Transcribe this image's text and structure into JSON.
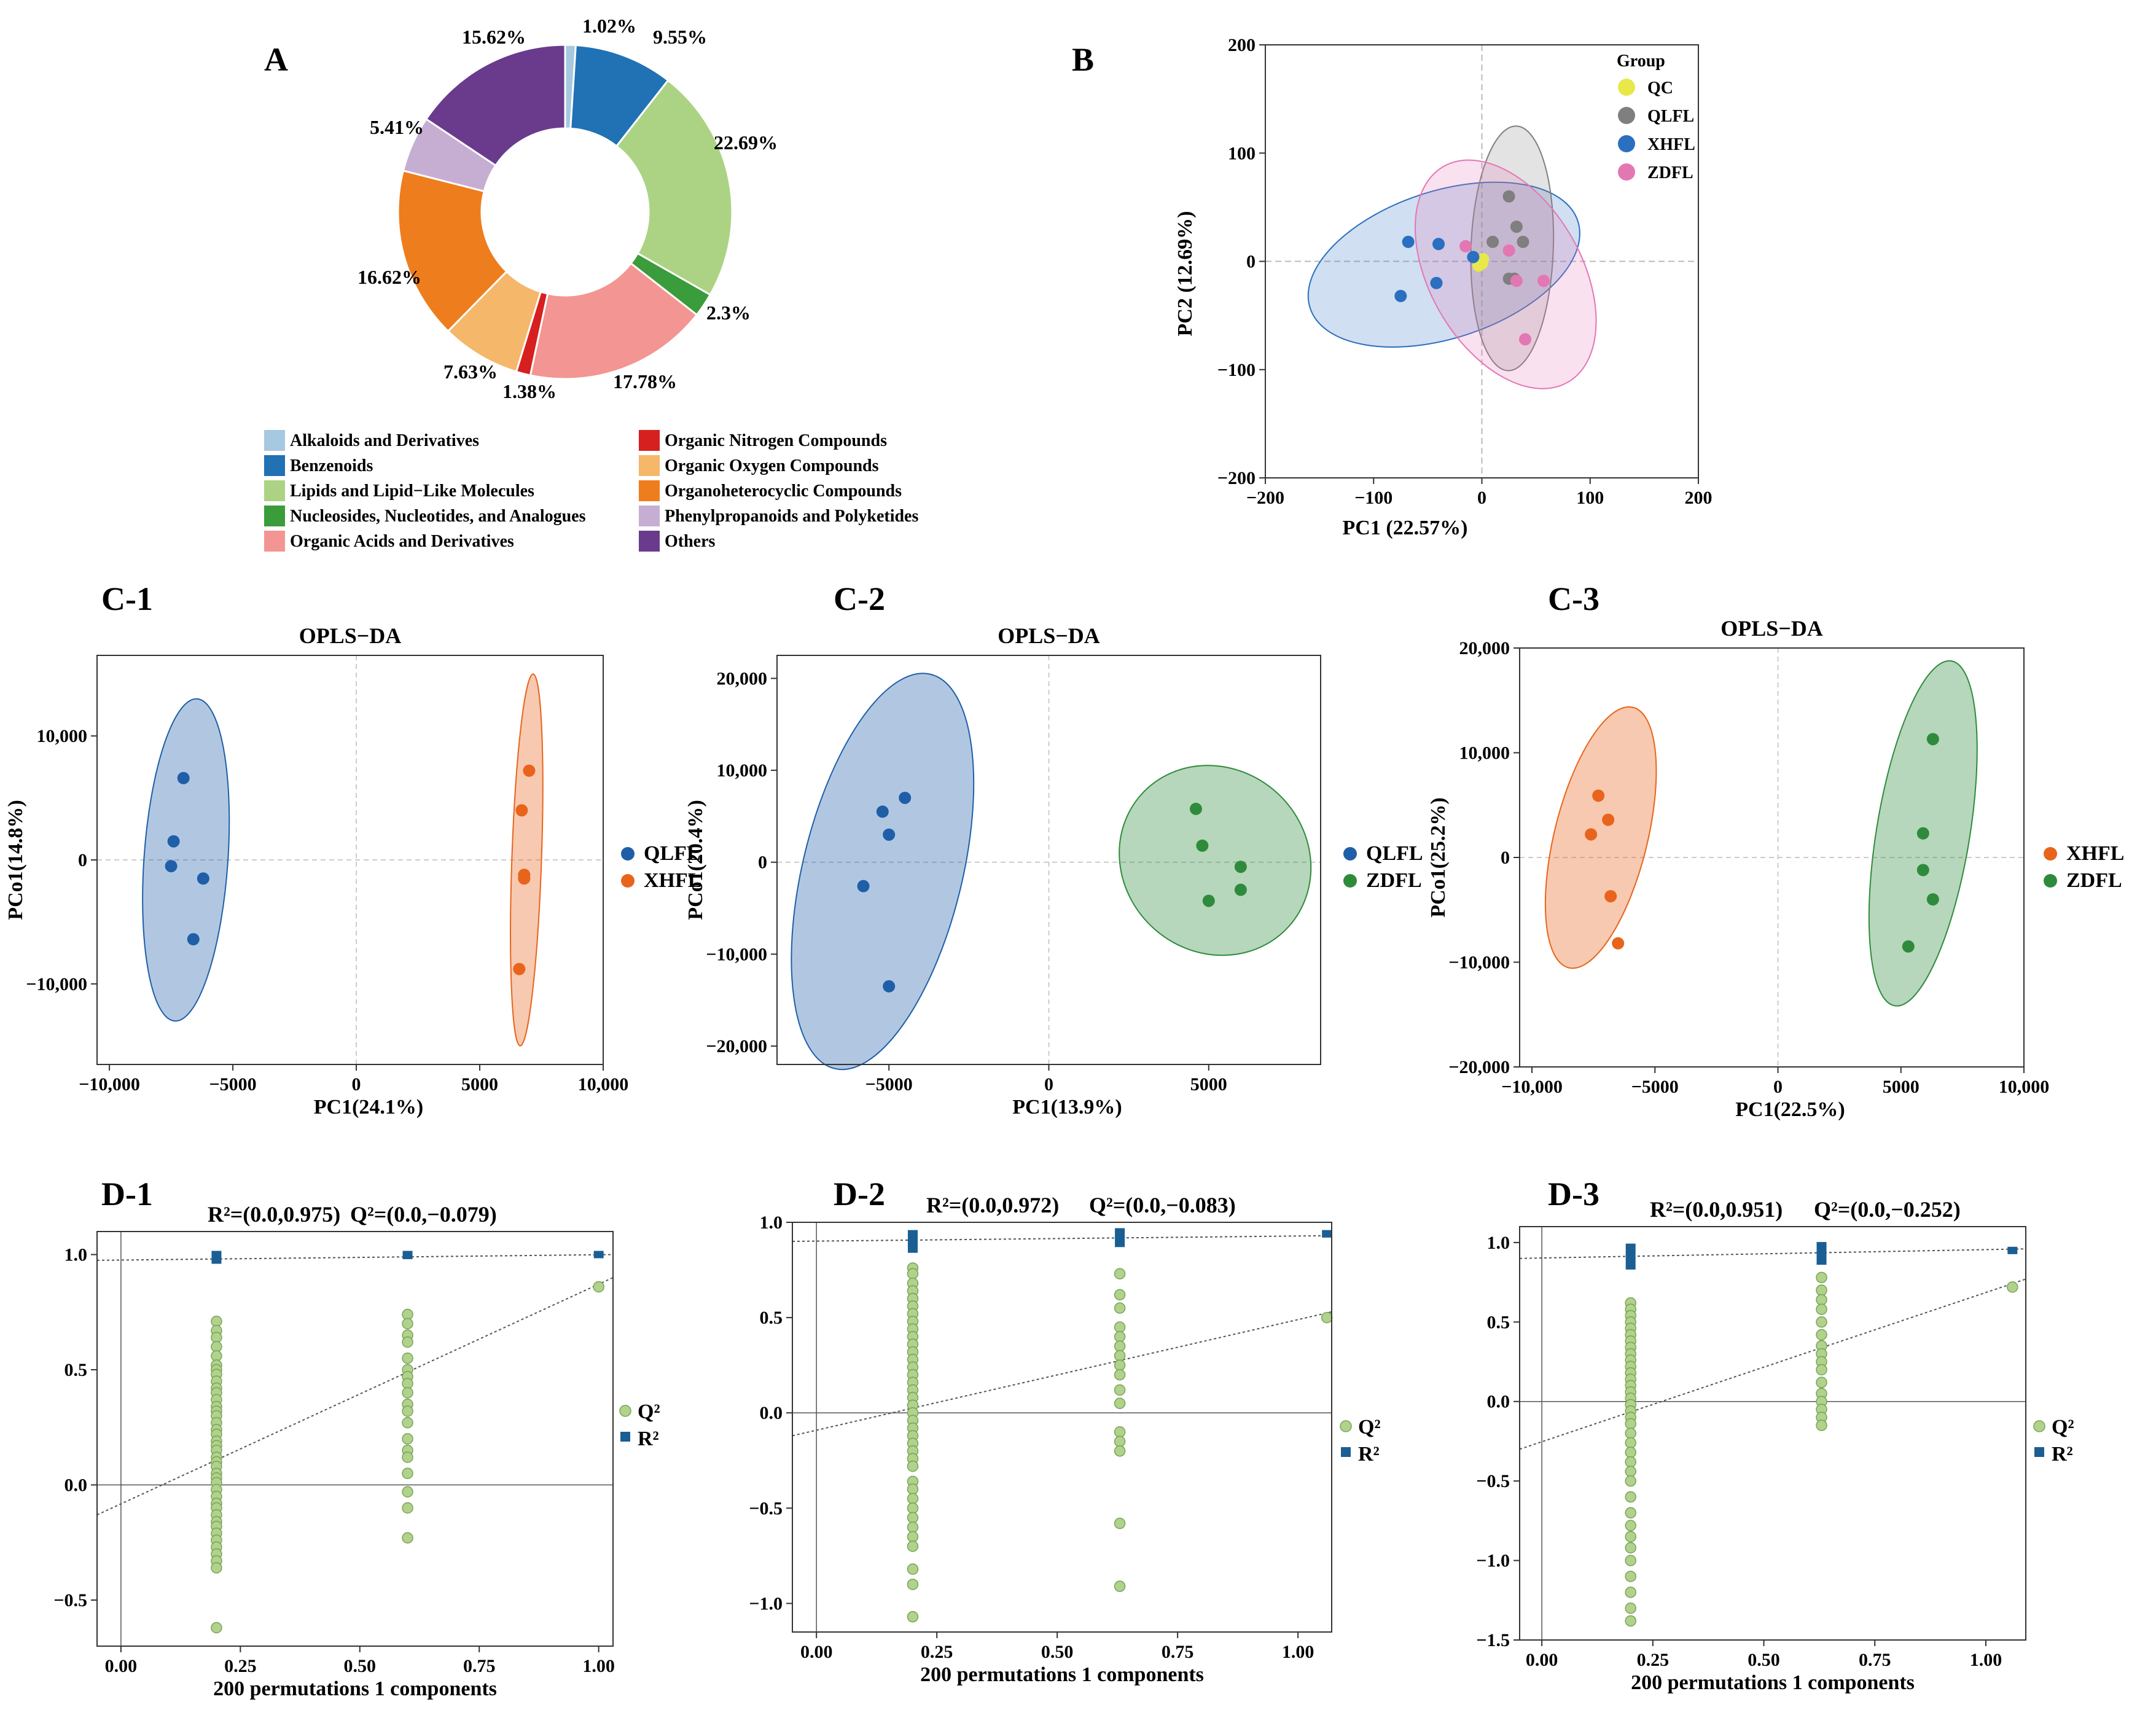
{
  "chart_data": [
    {
      "id": "A",
      "type": "pie",
      "donut": true,
      "title": "A",
      "slices": [
        {
          "label": "Alkaloids and Derivatives",
          "pct": 1.02,
          "color": "#a6c8e0"
        },
        {
          "label": "Benzenoids",
          "pct": 9.55,
          "color": "#2171b5"
        },
        {
          "label": "Lipids and Lipid−Like Molecules",
          "pct": 22.69,
          "color": "#acd384"
        },
        {
          "label": "Nucleosides, Nucleotides, and Analogues",
          "pct": 2.3,
          "color": "#3a9c3a"
        },
        {
          "label": "Organic Acids and Derivatives",
          "pct": 17.78,
          "color": "#f39592"
        },
        {
          "label": "Organic Nitrogen Compounds",
          "pct": 1.38,
          "color": "#d62020"
        },
        {
          "label": "Organic Oxygen Compounds",
          "pct": 7.63,
          "color": "#f5b76a"
        },
        {
          "label": "Organoheterocyclic Compounds",
          "pct": 16.62,
          "color": "#ee7d1e"
        },
        {
          "label": "Phenylpropanoids and Polyketides",
          "pct": 5.41,
          "color": "#c6aed3"
        },
        {
          "label": "Others",
          "pct": 15.62,
          "color": "#6a3b8c"
        }
      ],
      "slice_labels": [
        "1.02%",
        "9.55%",
        "22.69%",
        "2.3%",
        "17.78%",
        "1.38%",
        "7.63%",
        "16.62%",
        "5.41%",
        "15.62%"
      ]
    },
    {
      "id": "B",
      "type": "scatter",
      "title": "B",
      "xlabel": "PC1  (22.57%)",
      "ylabel": "PC2  (12.69%)",
      "xlim": [
        -200,
        200
      ],
      "ylim": [
        -200,
        200
      ],
      "xticks": [
        -200,
        -100,
        0,
        100,
        200
      ],
      "yticks": [
        -200,
        -100,
        0,
        100,
        200
      ],
      "xtick_labels": [
        "−200",
        "−100",
        "0",
        "100",
        "200"
      ],
      "ytick_labels": [
        "−200",
        "−100",
        "0",
        "100",
        "200"
      ],
      "legend_title": "Group",
      "series": [
        {
          "name": "QC",
          "color": "#e8e84a",
          "points": [
            [
              -2,
              0
            ],
            [
              0,
              -2
            ],
            [
              -3,
              -4
            ],
            [
              1,
              2
            ]
          ]
        },
        {
          "name": "QLFL",
          "color": "#7f7f7f",
          "points": [
            [
              25,
              60
            ],
            [
              32,
              32
            ],
            [
              10,
              18
            ],
            [
              38,
              18
            ],
            [
              25,
              -16
            ],
            [
              30,
              -16
            ]
          ]
        },
        {
          "name": "XHFL",
          "color": "#2a6fc0",
          "points": [
            [
              -68,
              18
            ],
            [
              -40,
              16
            ],
            [
              -75,
              -32
            ],
            [
              -42,
              -20
            ],
            [
              -8,
              4
            ]
          ]
        },
        {
          "name": "ZDFL",
          "color": "#e377b4",
          "points": [
            [
              -15,
              14
            ],
            [
              25,
              10
            ],
            [
              32,
              -18
            ],
            [
              57,
              -18
            ],
            [
              40,
              -72
            ]
          ]
        }
      ],
      "ellipses": [
        {
          "group": "XHFL",
          "cx": -35,
          "cy": -3,
          "rx": 130,
          "ry": 68,
          "angle": 18
        },
        {
          "group": "QLFL",
          "cx": 28,
          "cy": 12,
          "rx": 113,
          "ry": 38,
          "angle": 88
        },
        {
          "group": "ZDFL",
          "cx": 22,
          "cy": -12,
          "rx": 115,
          "ry": 70,
          "angle": -60
        }
      ]
    },
    {
      "id": "C-1",
      "type": "scatter",
      "title": "OPLS−DA",
      "panel_label": "C-1",
      "xlabel": "PC1(24.1%)",
      "ylabel": "PCo1(14.8%)",
      "xlim": [
        -10500,
        10000
      ],
      "ylim": [
        -16500,
        16500
      ],
      "xticks": [
        -10000,
        -5000,
        0,
        5000,
        10000
      ],
      "xtick_labels": [
        "−10,000",
        "−5000",
        "0",
        "5000",
        "10,000"
      ],
      "yticks": [
        -10000,
        0,
        10000
      ],
      "ytick_labels": [
        "−10,000",
        "0",
        "10,000"
      ],
      "series": [
        {
          "name": "QLFL",
          "color": "#1f5fa8",
          "points": [
            [
              -7000,
              6600
            ],
            [
              -7400,
              1500
            ],
            [
              -7500,
              -500
            ],
            [
              -6200,
              -1500
            ],
            [
              -6600,
              -6400
            ]
          ]
        },
        {
          "name": "XHFL",
          "color": "#e8641c",
          "points": [
            [
              7000,
              7200
            ],
            [
              6700,
              4000
            ],
            [
              6800,
              -1200
            ],
            [
              6800,
              -1500
            ],
            [
              6600,
              -8800
            ]
          ]
        }
      ],
      "ellipses": [
        {
          "group": "QLFL",
          "cx": -6900,
          "cy": 0,
          "rx": 13000,
          "ry": 1700,
          "angle": 88
        },
        {
          "group": "XHFL",
          "cx": 6900,
          "cy": 0,
          "rx": 15000,
          "ry": 600,
          "angle": 89
        }
      ]
    },
    {
      "id": "C-2",
      "type": "scatter",
      "title": "OPLS−DA",
      "panel_label": "C-2",
      "xlabel": "PC1(13.9%)",
      "ylabel": "PCo1(20.4%)",
      "xlim": [
        -8500,
        8500
      ],
      "ylim": [
        -22000,
        22500
      ],
      "xticks": [
        -5000,
        0,
        5000
      ],
      "xtick_labels": [
        "−5000",
        "0",
        "5000"
      ],
      "yticks": [
        -20000,
        -10000,
        0,
        10000,
        20000
      ],
      "ytick_labels": [
        "−20,000",
        "−10,000",
        "0",
        "10,000",
        "20,000"
      ],
      "series": [
        {
          "name": "QLFL",
          "color": "#1f5fa8",
          "points": [
            [
              -4500,
              7000
            ],
            [
              -5200,
              5500
            ],
            [
              -5000,
              3000
            ],
            [
              -5800,
              -2600
            ],
            [
              -5000,
              -13500
            ]
          ]
        },
        {
          "name": "ZDFL",
          "color": "#2e8b3c",
          "points": [
            [
              4600,
              5800
            ],
            [
              4800,
              1800
            ],
            [
              6000,
              -500
            ],
            [
              6000,
              -3000
            ],
            [
              5000,
              -4200
            ]
          ]
        }
      ],
      "ellipses": [
        {
          "group": "QLFL",
          "cx": -5200,
          "cy": -1000,
          "rx": 21500,
          "ry": 2500,
          "angle": 86
        },
        {
          "group": "ZDFL",
          "cx": 5200,
          "cy": 200,
          "rx": 7500,
          "ry": 3000,
          "angle": -72
        }
      ]
    },
    {
      "id": "C-3",
      "type": "scatter",
      "title": "OPLS−DA",
      "panel_label": "C-3",
      "xlabel": "PC1(22.5%)",
      "ylabel": "PCo1(25.2%)",
      "xlim": [
        -10500,
        10000
      ],
      "ylim": [
        -20000,
        20000
      ],
      "xticks": [
        -10000,
        -5000,
        0,
        5000,
        10000
      ],
      "xtick_labels": [
        "−10,000",
        "−5000",
        "0",
        "5000",
        "10,000"
      ],
      "yticks": [
        -20000,
        -10000,
        0,
        10000,
        20000
      ],
      "ytick_labels": [
        "−20,000",
        "−10,000",
        "0",
        "10,000",
        "20,000"
      ],
      "series": [
        {
          "name": "XHFL",
          "color": "#e8641c",
          "points": [
            [
              -7300,
              5900
            ],
            [
              -6900,
              3600
            ],
            [
              -7600,
              2200
            ],
            [
              -6800,
              -3700
            ],
            [
              -6500,
              -8200
            ]
          ]
        },
        {
          "name": "ZDFL",
          "color": "#2e8b3c",
          "points": [
            [
              6300,
              11300
            ],
            [
              5900,
              2300
            ],
            [
              5900,
              -1200
            ],
            [
              6300,
              -4000
            ],
            [
              5300,
              -8500
            ]
          ]
        }
      ],
      "ellipses": [
        {
          "group": "XHFL",
          "cx": -7200,
          "cy": 1900,
          "rx": 12500,
          "ry": 1900,
          "angle": 84
        },
        {
          "group": "ZDFL",
          "cx": 5900,
          "cy": 2300,
          "rx": 16500,
          "ry": 1900,
          "angle": 86
        }
      ]
    },
    {
      "id": "D-1",
      "type": "scatter",
      "panel_label": "D-1",
      "title_r2": "R²=(0.0,0.975)",
      "title_q2": "Q²=(0.0,−0.079)",
      "xlabel": "200 permutations 1 components",
      "xlim": [
        -0.05,
        1.03
      ],
      "ylim": [
        -0.7,
        1.1
      ],
      "xticks": [
        0.0,
        0.25,
        0.5,
        0.75,
        1.0
      ],
      "xtick_labels": [
        "0.00",
        "0.25",
        "0.50",
        "0.75",
        "1.00"
      ],
      "yticks": [
        -0.5,
        0.0,
        0.5,
        1.0
      ],
      "ytick_labels": [
        "−0.5",
        "0.0",
        "0.5",
        "1.0"
      ],
      "legend": [
        "Q²",
        "R²"
      ],
      "q2_points": {
        "x_groups": [
          0.2,
          0.6,
          1.0
        ],
        "y_group_1": [
          0.71,
          0.67,
          0.64,
          0.6,
          0.56,
          0.52,
          0.5,
          0.48,
          0.45,
          0.42,
          0.4,
          0.37,
          0.34,
          0.32,
          0.3,
          0.27,
          0.24,
          0.22,
          0.19,
          0.17,
          0.15,
          0.12,
          0.1,
          0.08,
          0.05,
          0.03,
          0.01,
          -0.02,
          -0.05,
          -0.08,
          -0.1,
          -0.13,
          -0.16,
          -0.18,
          -0.21,
          -0.24,
          -0.27,
          -0.3,
          -0.33,
          -0.36,
          -0.62
        ],
        "y_group_2": [
          0.74,
          0.7,
          0.65,
          0.62,
          0.55,
          0.5,
          0.47,
          0.44,
          0.4,
          0.35,
          0.32,
          0.27,
          0.2,
          0.15,
          0.12,
          0.05,
          -0.03,
          -0.1,
          -0.23
        ],
        "y_group_3": [
          0.86
        ]
      },
      "r2_points": {
        "x": [
          0.2,
          0.6,
          1.0
        ],
        "y_min": [
          0.96,
          0.98,
          1.0
        ],
        "y_max": [
          1.0,
          1.0,
          1.0
        ]
      },
      "q2_line": {
        "x0": -0.05,
        "y0": -0.13,
        "x1": 1.03,
        "y1": 0.9
      },
      "r2_line": {
        "x0": -0.05,
        "y0": 0.975,
        "x1": 1.03,
        "y1": 1.0
      }
    },
    {
      "id": "D-2",
      "type": "scatter",
      "panel_label": "D-2",
      "title_r2": "R²=(0.0,0.972)",
      "title_q2": "Q²=(0.0,−0.083)",
      "xlabel": "200 permutations 1 components",
      "xlim": [
        -0.05,
        1.07
      ],
      "ylim": [
        -1.15,
        1.0
      ],
      "xticks": [
        0.0,
        0.25,
        0.5,
        0.75,
        1.0
      ],
      "xtick_labels": [
        "0.00",
        "0.25",
        "0.50",
        "0.75",
        "1.00"
      ],
      "yticks": [
        -1.0,
        -0.5,
        0.0,
        0.5,
        1.0
      ],
      "ytick_labels": [
        "−1.0",
        "−0.5",
        "0.0",
        "0.5",
        "1.0"
      ],
      "legend": [
        "Q²",
        "R²"
      ],
      "q2_points": {
        "x_groups": [
          0.2,
          0.63,
          1.06
        ],
        "y_group_1": [
          0.76,
          0.73,
          0.68,
          0.64,
          0.6,
          0.56,
          0.52,
          0.48,
          0.44,
          0.4,
          0.36,
          0.32,
          0.28,
          0.24,
          0.2,
          0.16,
          0.12,
          0.08,
          0.04,
          0.0,
          -0.04,
          -0.08,
          -0.12,
          -0.16,
          -0.2,
          -0.24,
          -0.28,
          -0.36,
          -0.4,
          -0.45,
          -0.5,
          -0.55,
          -0.6,
          -0.65,
          -0.7,
          -0.82,
          -0.9,
          -1.07
        ],
        "y_group_2": [
          0.73,
          0.62,
          0.55,
          0.45,
          0.4,
          0.35,
          0.3,
          0.25,
          0.2,
          0.12,
          0.05,
          -0.1,
          -0.15,
          -0.2,
          -0.58,
          -0.91
        ],
        "y_group_3": [
          0.5
        ]
      },
      "r2_points": {
        "x": [
          0.2,
          0.63,
          1.06
        ],
        "y_min": [
          0.84,
          0.87,
          0.92
        ],
        "y_max": [
          0.94,
          0.95,
          0.94
        ]
      },
      "q2_line": {
        "x0": -0.05,
        "y0": -0.12,
        "x1": 1.07,
        "y1": 0.53
      },
      "r2_line": {
        "x0": -0.05,
        "y0": 0.9,
        "x1": 1.07,
        "y1": 0.93
      }
    },
    {
      "id": "D-3",
      "type": "scatter",
      "panel_label": "D-3",
      "title_r2": "R²=(0.0,0.951)",
      "title_q2": "Q²=(0.0,−0.252)",
      "xlabel": "200 permutations 1 components",
      "xlim": [
        -0.05,
        1.09
      ],
      "ylim": [
        -1.5,
        1.1
      ],
      "xticks": [
        0.0,
        0.25,
        0.5,
        0.75,
        1.0
      ],
      "xtick_labels": [
        "0.00",
        "0.25",
        "0.50",
        "0.75",
        "1.00"
      ],
      "yticks": [
        -1.5,
        -1.0,
        -0.5,
        0.0,
        0.5,
        1.0
      ],
      "ytick_labels": [
        "−1.5",
        "−1.0",
        "−0.5",
        "0.0",
        "0.5",
        "1.0"
      ],
      "legend": [
        "Q²",
        "R²"
      ],
      "q2_points": {
        "x_groups": [
          0.2,
          0.63,
          1.06
        ],
        "y_group_1": [
          0.62,
          0.58,
          0.54,
          0.5,
          0.46,
          0.42,
          0.38,
          0.34,
          0.3,
          0.26,
          0.22,
          0.18,
          0.14,
          0.1,
          0.06,
          0.02,
          -0.02,
          -0.06,
          -0.1,
          -0.14,
          -0.2,
          -0.26,
          -0.32,
          -0.38,
          -0.44,
          -0.5,
          -0.6,
          -0.7,
          -0.78,
          -0.85,
          -0.92,
          -1.0,
          -1.1,
          -1.2,
          -1.3,
          -1.38
        ],
        "y_group_2": [
          0.78,
          0.7,
          0.64,
          0.58,
          0.5,
          0.42,
          0.35,
          0.3,
          0.25,
          0.2,
          0.12,
          0.05,
          0.0,
          -0.05,
          -0.1,
          -0.15
        ],
        "y_group_3": [
          0.72
        ]
      },
      "r2_points": {
        "x": [
          0.2,
          0.63,
          1.06
        ],
        "y_min": [
          0.83,
          0.86,
          0.95
        ],
        "y_max": [
          0.97,
          0.98,
          0.95
        ]
      },
      "q2_line": {
        "x0": -0.05,
        "y0": -0.3,
        "x1": 1.09,
        "y1": 0.77
      },
      "r2_line": {
        "x0": -0.05,
        "y0": 0.9,
        "x1": 1.09,
        "y1": 0.96
      }
    }
  ]
}
